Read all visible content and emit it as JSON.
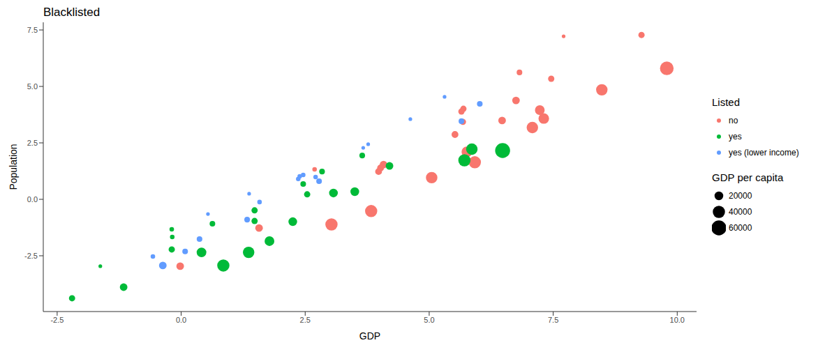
{
  "chart_data": {
    "type": "scatter",
    "title": "Blacklisted",
    "x_label": "GDP",
    "y_label": "Population",
    "legend_title": "Listed",
    "grid": false,
    "xlim": [
      -2.78,
      10.39
    ],
    "xticks": [
      -2.5,
      {
        "value": 0,
        "label": "0.0"
      },
      2.5,
      {
        "value": 5,
        "label": "5.0"
      },
      7.5,
      {
        "value": 10,
        "label": "10.0"
      }
    ],
    "ylim": [
      -4.97,
      7.84
    ],
    "yticks": [
      -2.5,
      {
        "value": 0,
        "label": "0.0"
      },
      2.5,
      {
        "value": 5,
        "label": "5.0"
      },
      7.5
    ],
    "size_legend": {
      "title": "GDP per capita",
      "values": [
        20000,
        40000,
        60000
      ]
    },
    "series": [
      {
        "name": "no",
        "color": "#F8766D",
        "x": [
          7.71,
          9.28,
          9.79,
          8.48,
          6.82,
          7.46,
          6.75,
          7.23,
          7.31,
          7.08,
          6.47,
          5.69,
          5.65,
          5.68,
          5.52,
          5.76,
          5.92,
          5.05,
          4.08,
          4.02,
          3.98,
          3.83,
          3.03,
          2.69,
          1.57,
          -0.02
        ],
        "y": [
          7.22,
          7.28,
          5.8,
          4.85,
          5.62,
          5.34,
          4.38,
          3.95,
          3.58,
          3.18,
          3.49,
          4.01,
          3.89,
          3.43,
          2.87,
          2.1,
          1.64,
          0.96,
          1.54,
          1.39,
          1.23,
          -0.52,
          -1.11,
          1.33,
          -1.27,
          -2.96
        ],
        "gdp_per_capita": [
          3000,
          10000,
          50000,
          35000,
          8000,
          10000,
          15000,
          25000,
          30000,
          35000,
          15000,
          10000,
          10000,
          10000,
          12000,
          30000,
          40000,
          35000,
          15000,
          12000,
          12000,
          40000,
          40000,
          5000,
          15000,
          15000
        ]
      },
      {
        "name": "yes",
        "color": "#00BA38",
        "x": [
          6.48,
          5.86,
          5.71,
          4.2,
          3.65,
          3.5,
          3.07,
          2.84,
          2.54,
          2.46,
          2.25,
          1.48,
          1.48,
          0.63,
          1.78,
          1.36,
          0.85,
          0.41,
          -0.19,
          -0.18,
          -0.19,
          -1.63,
          -1.16,
          -2.2
        ],
        "y": [
          2.16,
          2.22,
          1.73,
          1.48,
          1.94,
          0.34,
          0.28,
          1.23,
          0.22,
          0.68,
          -0.99,
          -0.49,
          -0.96,
          -1.08,
          -1.85,
          -2.35,
          -2.93,
          -2.35,
          -1.33,
          -1.67,
          -2.22,
          -2.96,
          -3.89,
          -4.38
        ],
        "gdp_per_capita": [
          60000,
          35000,
          40000,
          15000,
          8000,
          20000,
          20000,
          8000,
          10000,
          8000,
          20000,
          10000,
          10000,
          8000,
          25000,
          35000,
          40000,
          25000,
          5000,
          5000,
          10000,
          3000,
          15000,
          10000
        ]
      },
      {
        "name": "yes (lower income)",
        "color": "#619CFF",
        "x": [
          5.31,
          6.02,
          5.65,
          4.62,
          3.77,
          3.67,
          2.46,
          2.39,
          2.36,
          2.71,
          2.78,
          1.37,
          1.58,
          1.33,
          0.54,
          0.37,
          0.08,
          -0.57,
          -0.37
        ],
        "y": [
          4.54,
          4.23,
          3.46,
          3.55,
          2.44,
          2.28,
          1.08,
          1.02,
          0.9,
          0.99,
          0.8,
          0.25,
          -0.12,
          -0.9,
          -0.65,
          -1.76,
          -2.31,
          -2.53,
          -2.93
        ],
        "gdp_per_capita": [
          3000,
          8000,
          8000,
          3000,
          3000,
          3000,
          5000,
          5000,
          5000,
          5000,
          8000,
          3000,
          5000,
          8000,
          3000,
          8000,
          8000,
          5000,
          15000
        ]
      }
    ]
  }
}
